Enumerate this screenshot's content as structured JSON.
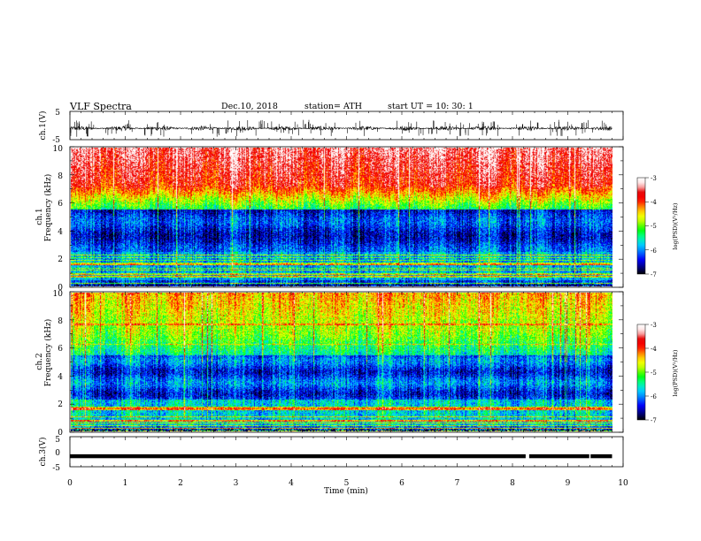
{
  "header": {
    "title": "VLF  Spectra",
    "date": "Dec.10, 2018",
    "station": "station= ATH",
    "start": "start  UT  =    10: 30: 1"
  },
  "chart_data": [
    {
      "id": "ch1-waveform",
      "type": "line",
      "ylabel": "ch.1(V)",
      "ylim": [
        -5,
        5
      ],
      "yticks": [
        "5",
        "-5"
      ],
      "x_range_min": [
        0,
        10
      ],
      "data_extent_min": 9.8,
      "signal": {
        "mean": -1.0,
        "noise_amplitude": 0.8,
        "spike_amplitude": 3.0
      }
    },
    {
      "id": "ch1-spectrogram",
      "type": "heatmap",
      "ylabel": "ch.1\nFrequency  (kHz)",
      "ylim": [
        0,
        10
      ],
      "yticks": [
        "0",
        "2",
        "4",
        "6",
        "8",
        "10"
      ],
      "x_range_min": [
        0,
        10
      ],
      "data_extent_min": 9.8,
      "colorbar": {
        "label": "log(PSD)(V²/Hz)",
        "range": [
          -7,
          -3
        ],
        "ticks": [
          "-3",
          "-4",
          "-5",
          "-6",
          "-7"
        ]
      }
    },
    {
      "id": "ch2-spectrogram",
      "type": "heatmap",
      "ylabel": "ch.2\nFrequency  (kHz)",
      "ylim": [
        0,
        10
      ],
      "yticks": [
        "0",
        "2",
        "4",
        "6",
        "8",
        "10"
      ],
      "x_range_min": [
        0,
        10
      ],
      "data_extent_min": 9.8,
      "colorbar": {
        "label": "log(PSD)(V²/Hz)",
        "range": [
          -7,
          -3
        ],
        "ticks": [
          "-3",
          "-4",
          "-5",
          "-6",
          "-7"
        ]
      }
    },
    {
      "id": "ch3-waveform",
      "type": "line",
      "ylabel": "ch.3(V)",
      "xlabel": "Time  (min)",
      "ylim": [
        -5,
        5
      ],
      "yticks": [
        "5",
        "0",
        "-5"
      ],
      "xticks": [
        "0",
        "1",
        "2",
        "3",
        "4",
        "5",
        "6",
        "7",
        "8",
        "9",
        "10"
      ],
      "x_range_min": [
        0,
        10
      ],
      "data_extent_min": 9.8,
      "signal": {
        "mean": -1.5,
        "gaps_min": [
          8.27,
          9.42
        ]
      }
    }
  ],
  "colors": {
    "colormap": [
      "#000000",
      "#00008c",
      "#0000ff",
      "#0078ff",
      "#00d2ff",
      "#00ff96",
      "#00ff00",
      "#b4ff00",
      "#ffff00",
      "#ff8c00",
      "#ff0000",
      "#e60000",
      "#ffdcdc",
      "#ffffff"
    ]
  }
}
